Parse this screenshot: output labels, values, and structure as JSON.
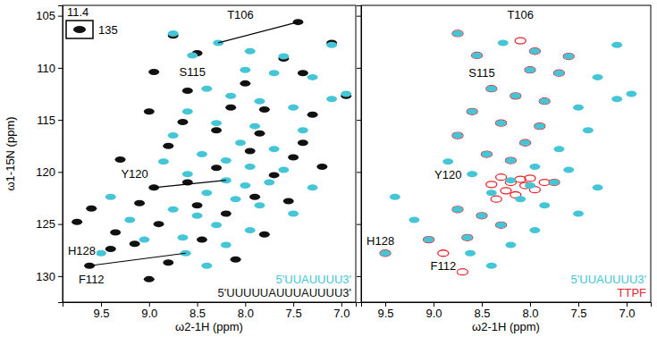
{
  "chart_data": [
    {
      "type": "scatter",
      "x_label": "ω2-1H (ppm)",
      "y_label": "ω1-15N (ppm)",
      "xlim": [
        9.9,
        6.85
      ],
      "ylim": [
        104,
        132.5
      ],
      "xticks": [
        9.5,
        {
          "value": 9,
          "label": "9.0"
        },
        8.5,
        {
          "value": 8,
          "label": "8.0"
        },
        7.5,
        {
          "value": 7,
          "label": "7.0"
        }
      ],
      "yticks": [
        105,
        110,
        115,
        120,
        125,
        130
      ],
      "legend": "lower right",
      "inset": {
        "x": 11.4,
        "y": 135
      },
      "series": [
        {
          "name": "5'UUAUUUU3'",
          "color": "#45c6d6",
          "marker": "ellipse",
          "x": [
            8.28,
            8.75,
            8.55,
            7.95,
            7.6,
            7.1,
            8.0,
            7.7,
            7.3,
            6.95,
            8.4,
            8.15,
            7.85,
            7.5,
            8.6,
            8.3,
            7.9,
            7.4,
            8.75,
            8.05,
            7.7,
            8.45,
            8.2,
            7.95,
            8.6,
            8.2,
            8.0,
            7.75,
            8.4,
            8.1,
            7.85,
            8.75,
            8.5,
            9.2,
            8.3,
            7.95,
            8.65,
            9.05,
            8.2,
            8.62,
            9.5,
            8.4,
            7.6,
            7.3,
            9.4,
            8.85,
            7.5,
            7.1
          ],
          "values": [
            107.6,
            106.7,
            108.8,
            108.4,
            108.9,
            107.8,
            110.2,
            110.5,
            110.9,
            112.5,
            112.0,
            112.7,
            113.2,
            113.8,
            114.2,
            115.3,
            115.6,
            116.0,
            116.5,
            117.2,
            117.8,
            118.3,
            118.9,
            119.5,
            120.2,
            120.8,
            121.3,
            121.0,
            122.0,
            122.6,
            123.2,
            123.6,
            124.2,
            124.6,
            125.1,
            125.6,
            126.3,
            126.5,
            127.0,
            127.8,
            127.8,
            129.0,
            119.8,
            121.5,
            122.4,
            119.0,
            124.0,
            113.0
          ]
        },
        {
          "name": "5'UUUUUAUUUAUUUU3'",
          "color": "#111111",
          "marker": "ellipse",
          "x": [
            7.45,
            8.75,
            8.5,
            8.95,
            7.6,
            7.1,
            8.0,
            7.4,
            6.95,
            8.6,
            8.15,
            7.8,
            7.3,
            9.0,
            8.3,
            7.85,
            7.4,
            8.8,
            7.95,
            7.5,
            9.3,
            8.3,
            7.7,
            8.95,
            8.6,
            7.9,
            9.6,
            9.1,
            8.5,
            8.2,
            9.75,
            9.35,
            8.9,
            9.15,
            8.45,
            7.8,
            9.62,
            9.0,
            8.8,
            9.4,
            8.1,
            7.55,
            7.2,
            8.65
          ],
          "values": [
            105.6,
            106.9,
            108.6,
            110.4,
            109.1,
            107.6,
            111.5,
            110.5,
            112.7,
            112.2,
            113.8,
            114.0,
            114.5,
            114.2,
            116.0,
            116.3,
            117.2,
            117.5,
            118.0,
            118.6,
            118.8,
            119.6,
            120.3,
            121.5,
            121.0,
            122.4,
            123.5,
            123.0,
            123.2,
            124.0,
            124.8,
            125.8,
            125.0,
            126.9,
            126.5,
            126.0,
            129.0,
            130.3,
            128.7,
            127.4,
            128.4,
            122.8,
            119.5,
            115.2
          ]
        }
      ],
      "annotations": [
        {
          "text": "T106",
          "x": 8.05,
          "y": 104.9,
          "from": [
            7.45,
            105.6
          ],
          "to": [
            8.28,
            107.6
          ]
        },
        {
          "text": "S115",
          "x": 8.55,
          "y": 110.4
        },
        {
          "text": "Y120",
          "x": 9.15,
          "y": 120.2,
          "from": [
            8.95,
            121.5
          ],
          "to": [
            8.2,
            120.8
          ]
        },
        {
          "text": "H128",
          "x": 9.7,
          "y": 127.6
        },
        {
          "text": "F112",
          "x": 9.6,
          "y": 130.3,
          "from": [
            9.62,
            129.0
          ],
          "to": [
            8.62,
            127.8
          ]
        }
      ]
    },
    {
      "type": "scatter",
      "x_label": "ω2-1H (ppm)",
      "xlim": [
        9.75,
        6.75
      ],
      "ylim": [
        104,
        132.5
      ],
      "xticks": [
        9.5,
        {
          "value": 9,
          "label": "9.0"
        },
        8.5,
        {
          "value": 8,
          "label": "8.0"
        },
        7.5,
        {
          "value": 7,
          "label": "7.0"
        }
      ],
      "yticks": [
        105,
        110,
        115,
        120,
        125,
        130
      ],
      "tick_labels": "x",
      "legend": "lower right",
      "series": [
        {
          "name": "5'UUAUUUU3'",
          "color": "#45c6d6",
          "marker": "ellipse",
          "x": [
            8.28,
            8.75,
            8.55,
            7.95,
            7.6,
            7.1,
            8.0,
            7.7,
            7.3,
            6.95,
            8.4,
            8.15,
            7.85,
            7.5,
            8.6,
            8.3,
            7.9,
            7.4,
            8.75,
            8.05,
            7.7,
            8.45,
            8.2,
            7.95,
            8.6,
            8.2,
            8.0,
            7.75,
            8.4,
            8.1,
            7.85,
            8.75,
            8.5,
            9.2,
            8.3,
            7.95,
            8.65,
            9.05,
            8.2,
            8.62,
            9.5,
            8.4,
            7.6,
            7.3,
            9.4,
            8.85,
            7.5,
            7.1
          ],
          "values": [
            107.6,
            106.7,
            108.8,
            108.4,
            108.9,
            107.8,
            110.2,
            110.5,
            110.9,
            112.5,
            112.0,
            112.7,
            113.2,
            113.8,
            114.2,
            115.3,
            115.6,
            116.0,
            116.5,
            117.2,
            117.8,
            118.3,
            118.9,
            119.5,
            120.2,
            120.8,
            121.3,
            121.0,
            122.0,
            122.6,
            123.2,
            123.6,
            124.2,
            124.6,
            125.1,
            125.6,
            126.3,
            126.5,
            127.0,
            127.8,
            127.8,
            129.0,
            119.8,
            121.5,
            122.4,
            119.0,
            124.0,
            113.0
          ]
        },
        {
          "name": "TTPF",
          "color": "#e8242c",
          "marker": "ring",
          "x": [
            8.1,
            8.75,
            8.55,
            7.95,
            7.6,
            8.0,
            7.7,
            8.4,
            8.15,
            7.85,
            8.6,
            8.3,
            7.9,
            8.75,
            8.05,
            8.45,
            8.2,
            8.3,
            8.2,
            8.1,
            8.05,
            8.25,
            8.15,
            8.4,
            8.0,
            7.95,
            7.85,
            8.35,
            8.5,
            8.3,
            8.65,
            8.9,
            9.5,
            9.05,
            7.75,
            8.75,
            8.7
          ],
          "values": [
            107.4,
            106.7,
            108.8,
            108.4,
            108.9,
            110.2,
            110.5,
            112.0,
            112.7,
            113.2,
            114.2,
            115.3,
            115.6,
            116.5,
            117.2,
            118.3,
            118.9,
            120.5,
            121.0,
            120.7,
            121.3,
            121.8,
            122.2,
            121.2,
            120.6,
            121.7,
            121.0,
            122.6,
            124.2,
            125.1,
            126.3,
            127.8,
            127.8,
            126.5,
            121.0,
            123.6,
            129.6
          ]
        }
      ],
      "annotations": [
        {
          "text": "T106",
          "x": 8.1,
          "y": 104.9
        },
        {
          "text": "S115",
          "x": 8.5,
          "y": 110.5
        },
        {
          "text": "Y120",
          "x": 8.85,
          "y": 120.3
        },
        {
          "text": "H128",
          "x": 9.55,
          "y": 126.6
        },
        {
          "text": "F112",
          "x": 8.9,
          "y": 129.0
        }
      ]
    }
  ]
}
